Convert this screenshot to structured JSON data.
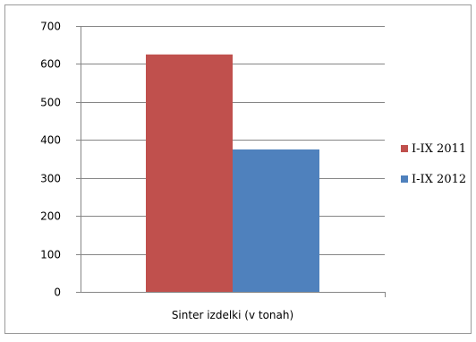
{
  "chart_data": {
    "type": "bar",
    "categories": [
      "Sinter izdelki (v tonah)"
    ],
    "series": [
      {
        "name": "I-IX 2011",
        "values": [
          625
        ],
        "color": "#c0504d"
      },
      {
        "name": "I-IX 2012",
        "values": [
          375
        ],
        "color": "#4f81bd"
      }
    ],
    "ylim": [
      0,
      700
    ],
    "yticks": [
      "0",
      "100",
      "200",
      "300",
      "400",
      "500",
      "600",
      "700"
    ],
    "grid": true,
    "legend": "right",
    "title": "",
    "xlabel": "",
    "ylabel": ""
  }
}
